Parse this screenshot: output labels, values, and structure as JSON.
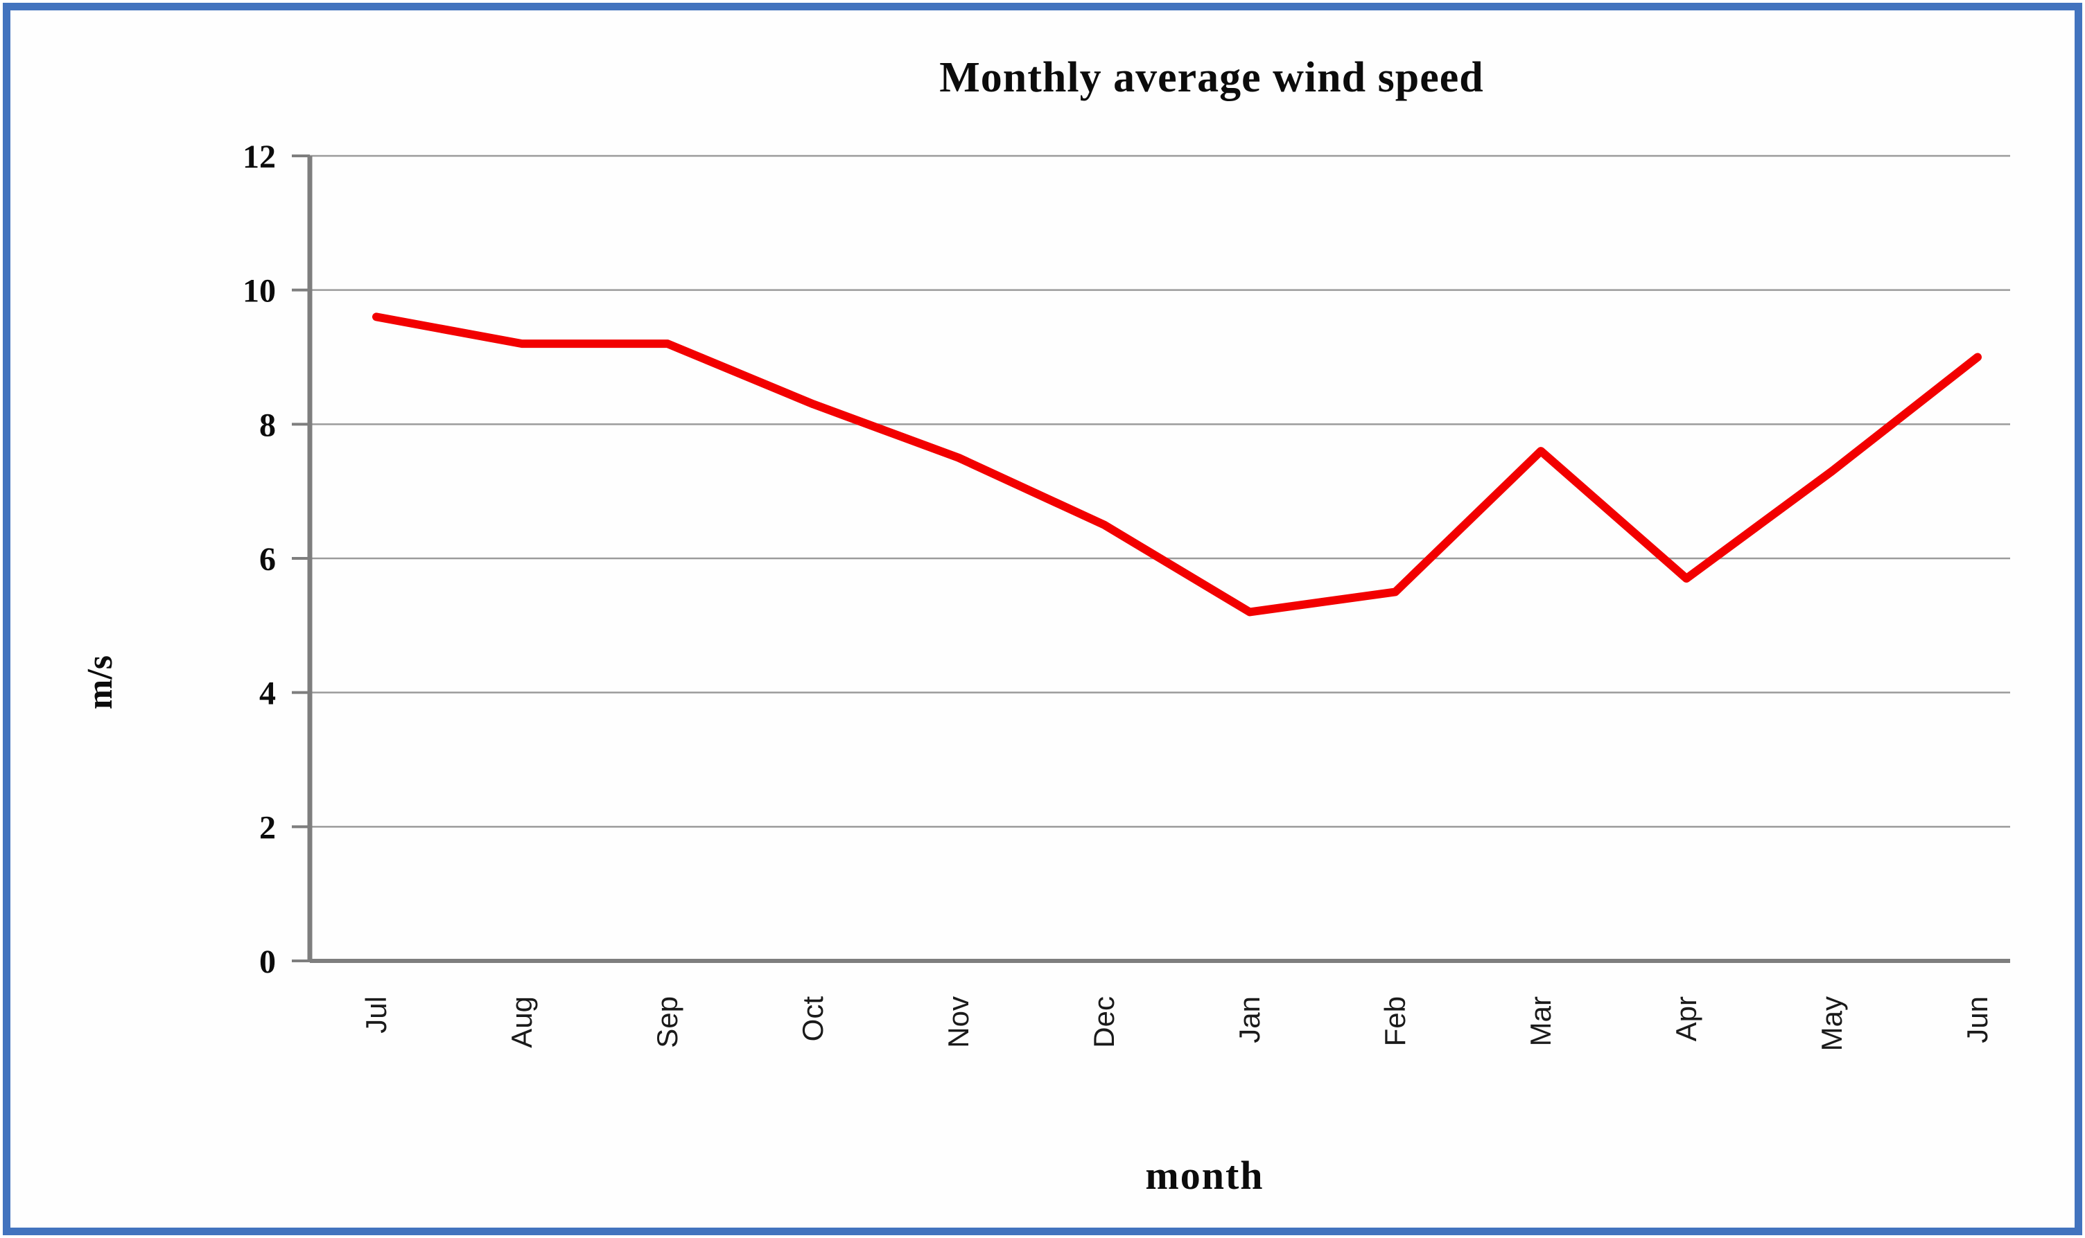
{
  "page": {
    "border_color": "#4273BE",
    "background_color": "#FEFEFE"
  },
  "chart_data": {
    "type": "line",
    "title": "Monthly average wind speed",
    "xlabel": "month",
    "ylabel": "m/s",
    "categories": [
      "Jul",
      "Aug",
      "Sep",
      "Oct",
      "Nov",
      "Dec",
      "Jan",
      "Feb",
      "Mar",
      "Apr",
      "May",
      "Jun"
    ],
    "series": [
      {
        "name": "Monthly average wind speed",
        "color": "#F20000",
        "values": [
          9.6,
          9.2,
          9.2,
          8.3,
          7.5,
          6.5,
          5.2,
          5.5,
          7.6,
          5.7,
          7.3,
          9.0
        ]
      }
    ],
    "ylim": [
      0,
      12
    ],
    "yticks": [
      0,
      2,
      4,
      6,
      8,
      10,
      12
    ],
    "grid": true,
    "legend": "none",
    "gridline_color": "#9B9B9B",
    "axis_color": "#7E7E7E",
    "x_label_rotation_deg": -90
  }
}
